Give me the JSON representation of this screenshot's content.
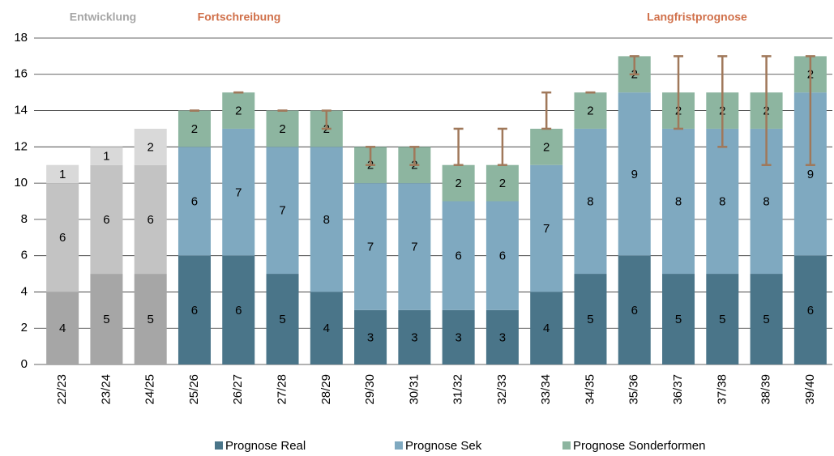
{
  "chart_data": {
    "type": "stacked_bar",
    "annotations": [
      {
        "text": "Entwicklung",
        "color": "#a6a6a6"
      },
      {
        "text": "Fortschreibung",
        "color": "#d0704a"
      },
      {
        "text": "Langfristprognose",
        "color": "#d0704a"
      }
    ],
    "categories": [
      "22/23",
      "23/24",
      "24/25",
      "25/26",
      "26/27",
      "27/28",
      "28/29",
      "29/30",
      "30/31",
      "31/32",
      "32/33",
      "33/34",
      "34/35",
      "35/36",
      "36/37",
      "37/38",
      "38/39",
      "39/40"
    ],
    "series": [
      {
        "name": "Prognose Real",
        "color": "#4a7589",
        "colors": [
          "#a6a6a6",
          "#a6a6a6",
          "#a6a6a6",
          "#4a7589",
          "#4a7589",
          "#4a7589",
          "#4a7589",
          "#4a7589",
          "#4a7589",
          "#4a7589",
          "#4a7589",
          "#4a7589",
          "#4a7589",
          "#4a7589",
          "#4a7589",
          "#4a7589",
          "#4a7589",
          "#4a7589"
        ],
        "values": [
          4,
          5,
          5,
          6,
          6,
          5,
          4,
          3,
          3,
          3,
          3,
          4,
          5,
          6,
          5,
          5,
          5,
          6
        ]
      },
      {
        "name": "Prognose Sek",
        "color": "#7fa9c0",
        "colors": [
          "#c3c3c3",
          "#c3c3c3",
          "#c3c3c3",
          "#7fa9c0",
          "#7fa9c0",
          "#7fa9c0",
          "#7fa9c0",
          "#7fa9c0",
          "#7fa9c0",
          "#7fa9c0",
          "#7fa9c0",
          "#7fa9c0",
          "#7fa9c0",
          "#7fa9c0",
          "#7fa9c0",
          "#7fa9c0",
          "#7fa9c0",
          "#7fa9c0"
        ],
        "values": [
          6,
          6,
          6,
          6,
          7,
          7,
          8,
          7,
          7,
          6,
          6,
          7,
          8,
          9,
          8,
          8,
          8,
          9
        ]
      },
      {
        "name": "Prognose Sonderformen",
        "color": "#8db5a0",
        "colors": [
          "#d9d9d9",
          "#d9d9d9",
          "#d9d9d9",
          "#8db5a0",
          "#8db5a0",
          "#8db5a0",
          "#8db5a0",
          "#8db5a0",
          "#8db5a0",
          "#8db5a0",
          "#8db5a0",
          "#8db5a0",
          "#8db5a0",
          "#8db5a0",
          "#8db5a0",
          "#8db5a0",
          "#8db5a0",
          "#8db5a0"
        ],
        "values": [
          1,
          1,
          2,
          2,
          2,
          2,
          2,
          2,
          2,
          2,
          2,
          2,
          2,
          2,
          2,
          2,
          2,
          2
        ]
      }
    ],
    "error_low": [
      null,
      null,
      null,
      14,
      15,
      14,
      13,
      11,
      11,
      11,
      11,
      13,
      15,
      16,
      13,
      12,
      11,
      11
    ],
    "error_high": [
      null,
      null,
      null,
      14,
      15,
      14,
      14,
      12,
      12,
      13,
      13,
      15,
      15,
      17,
      17,
      17,
      17,
      17
    ],
    "error_color": "#a0785a",
    "ylim": [
      0,
      18
    ],
    "yticks": [
      0,
      2,
      4,
      6,
      8,
      10,
      12,
      14,
      16,
      18
    ],
    "grid": true
  }
}
